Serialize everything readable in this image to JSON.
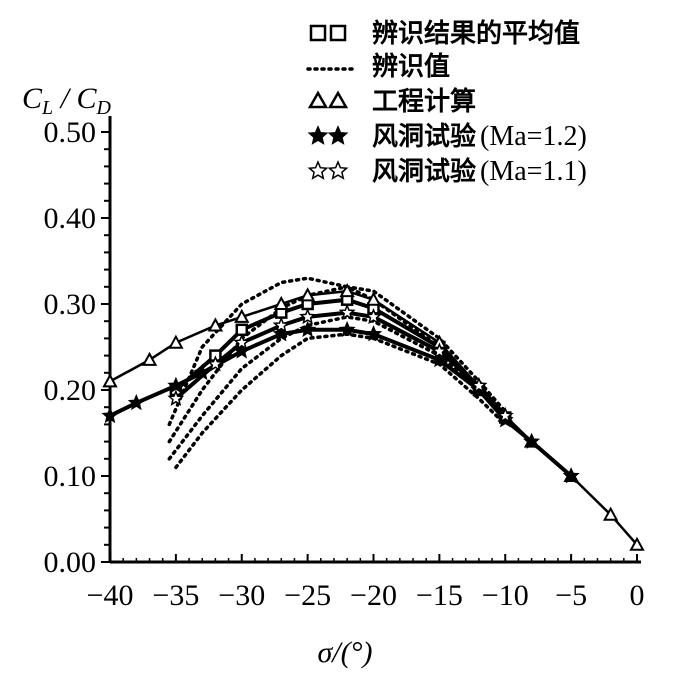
{
  "chart_data": {
    "type": "line",
    "title": "",
    "xlabel": "σ/(°)",
    "ylabel": "CL / CD",
    "ylabel_parts": {
      "c1": "C",
      "s1": "L",
      "sep": " / ",
      "c2": "C",
      "s2": "D"
    },
    "xlim": [
      -40,
      0
    ],
    "ylim": [
      0,
      0.5
    ],
    "x_ticks": [
      -40,
      -35,
      -30,
      -25,
      -20,
      -15,
      -10,
      -5,
      0
    ],
    "x_tick_labels": [
      "−40",
      "−35",
      "−30",
      "−25",
      "−20",
      "−15",
      "−10",
      "−5",
      "0"
    ],
    "y_ticks": [
      0,
      0.1,
      0.2,
      0.3,
      0.4,
      0.5
    ],
    "y_tick_labels": [
      "0.00",
      "0.10",
      "0.20",
      "0.30",
      "0.40",
      "0.50"
    ],
    "grid": false,
    "legend_placement": "top-right",
    "legend": [
      {
        "symbol": "□□",
        "label": "辨识结果的平均值"
      },
      {
        "symbol": "······",
        "label": "辨识值"
      },
      {
        "symbol": "△△",
        "label": "工程计算"
      },
      {
        "symbol": "★★",
        "label": "风洞试验",
        "suffix": "(Ma=1.2)"
      },
      {
        "symbol": "☆☆",
        "label": "风洞试验",
        "suffix": "(Ma=1.1)"
      }
    ],
    "series": [
      {
        "name": "辨识值",
        "style": "dotted",
        "points": [
          [
            -35.5,
            0.16
          ],
          [
            -33,
            0.25
          ],
          [
            -30,
            0.3
          ],
          [
            -27,
            0.325
          ],
          [
            -25,
            0.33
          ],
          [
            -22,
            0.32
          ],
          [
            -20,
            0.305
          ],
          [
            -15,
            0.25
          ],
          [
            -12,
            0.2
          ],
          [
            -10,
            0.17
          ]
        ]
      },
      {
        "name": "辨识值",
        "style": "dotted",
        "points": [
          [
            -35.5,
            0.14
          ],
          [
            -33,
            0.2
          ],
          [
            -30,
            0.26
          ],
          [
            -27,
            0.295
          ],
          [
            -25,
            0.31
          ],
          [
            -22,
            0.32
          ],
          [
            -20,
            0.315
          ],
          [
            -15,
            0.26
          ],
          [
            -12,
            0.21
          ],
          [
            -10,
            0.175
          ]
        ]
      },
      {
        "name": "辨识值",
        "style": "dotted",
        "points": [
          [
            -35.5,
            0.12
          ],
          [
            -33,
            0.17
          ],
          [
            -30,
            0.225
          ],
          [
            -27,
            0.26
          ],
          [
            -25,
            0.275
          ],
          [
            -22,
            0.285
          ],
          [
            -20,
            0.28
          ],
          [
            -15,
            0.24
          ],
          [
            -12,
            0.2
          ],
          [
            -10,
            0.165
          ]
        ]
      },
      {
        "name": "辨识值",
        "style": "dotted",
        "points": [
          [
            -35,
            0.11
          ],
          [
            -33,
            0.15
          ],
          [
            -30,
            0.2
          ],
          [
            -27,
            0.24
          ],
          [
            -25,
            0.26
          ],
          [
            -22,
            0.265
          ],
          [
            -20,
            0.26
          ],
          [
            -15,
            0.23
          ],
          [
            -12,
            0.19
          ],
          [
            -10,
            0.16
          ]
        ]
      },
      {
        "name": "辨识结果的平均值",
        "style": "square",
        "points": [
          [
            -35,
            0.2
          ],
          [
            -32,
            0.24
          ],
          [
            -30,
            0.27
          ],
          [
            -27,
            0.29
          ],
          [
            -25,
            0.3
          ],
          [
            -22,
            0.305
          ],
          [
            -20,
            0.295
          ],
          [
            -15,
            0.25
          ],
          [
            -12,
            0.2
          ],
          [
            -10,
            0.168
          ]
        ]
      },
      {
        "name": "工程计算",
        "style": "triangle",
        "points": [
          [
            -40,
            0.21
          ],
          [
            -37,
            0.235
          ],
          [
            -35,
            0.255
          ],
          [
            -32,
            0.275
          ],
          [
            -30,
            0.285
          ],
          [
            -27,
            0.3
          ],
          [
            -25,
            0.31
          ],
          [
            -22,
            0.315
          ],
          [
            -20,
            0.305
          ],
          [
            -15,
            0.255
          ],
          [
            -10,
            0.17
          ],
          [
            -8,
            0.14
          ],
          [
            -5,
            0.1
          ],
          [
            -2,
            0.055
          ],
          [
            0,
            0.02
          ]
        ]
      },
      {
        "name": "风洞试验(Ma=1.2)",
        "style": "star-filled",
        "points": [
          [
            -40,
            0.17
          ],
          [
            -38,
            0.185
          ],
          [
            -35,
            0.205
          ],
          [
            -33,
            0.22
          ],
          [
            -30,
            0.245
          ],
          [
            -27,
            0.265
          ],
          [
            -25,
            0.27
          ],
          [
            -22,
            0.27
          ],
          [
            -20,
            0.265
          ],
          [
            -15,
            0.235
          ],
          [
            -12,
            0.2
          ],
          [
            -10,
            0.165
          ],
          [
            -8,
            0.14
          ],
          [
            -5,
            0.1
          ]
        ]
      },
      {
        "name": "风洞试验(Ma=1.1)",
        "style": "star-hollow",
        "points": [
          [
            -35,
            0.19
          ],
          [
            -32,
            0.23
          ],
          [
            -30,
            0.255
          ],
          [
            -27,
            0.275
          ],
          [
            -25,
            0.285
          ],
          [
            -22,
            0.29
          ],
          [
            -20,
            0.285
          ],
          [
            -15,
            0.245
          ],
          [
            -12,
            0.205
          ],
          [
            -10,
            0.17
          ]
        ]
      }
    ]
  }
}
